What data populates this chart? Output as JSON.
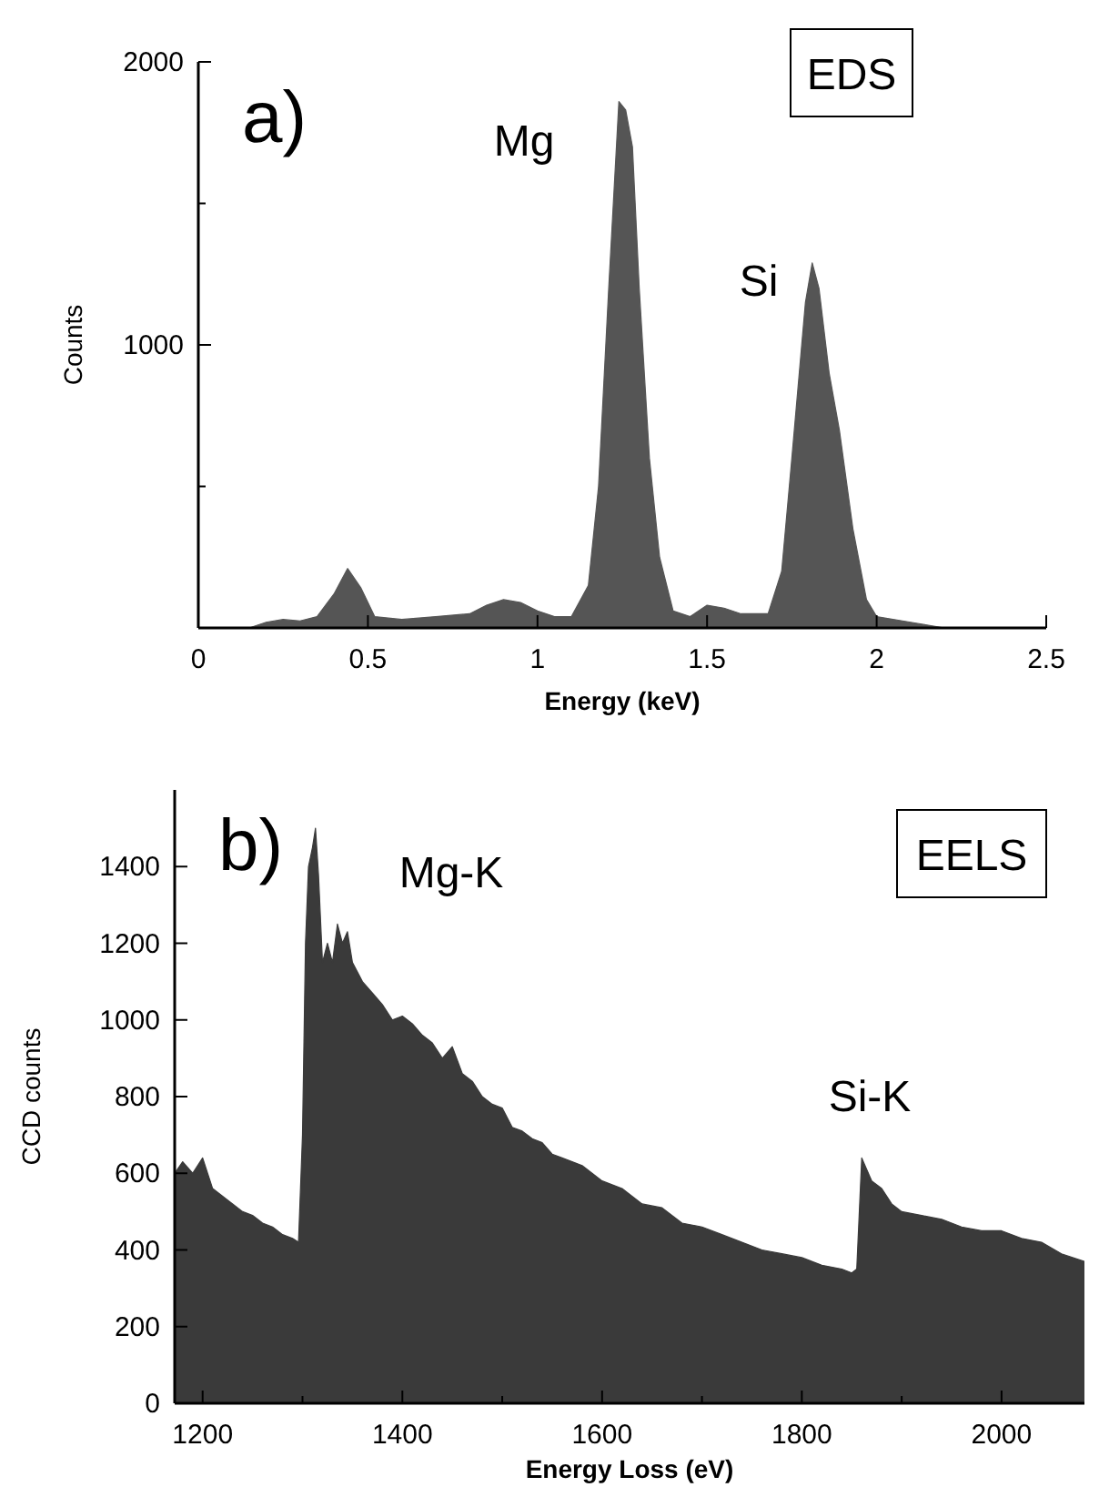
{
  "chart_data": [
    {
      "type": "area",
      "title": "a)",
      "xlabel": "Energy (keV)",
      "ylabel": "Counts",
      "xlim": [
        0,
        2.5
      ],
      "ylim": [
        0,
        2000
      ],
      "xticks": [
        0,
        0.5,
        1,
        1.5,
        2,
        2.5
      ],
      "yticks": [
        {
          "value": 0,
          "label": null
        },
        {
          "value": 500,
          "label": null
        },
        1000,
        {
          "value": 1500,
          "label": null
        },
        2000
      ],
      "annotations": [
        "Mg",
        "Si",
        "EDS"
      ],
      "series": [
        {
          "color": "#555555",
          "x": [
            0,
            0.15,
            0.2,
            0.25,
            0.3,
            0.35,
            0.4,
            0.44,
            0.48,
            0.52,
            0.6,
            0.7,
            0.8,
            0.85,
            0.9,
            0.95,
            1.0,
            1.05,
            1.1,
            1.15,
            1.18,
            1.21,
            1.24,
            1.26,
            1.28,
            1.3,
            1.33,
            1.36,
            1.4,
            1.45,
            1.5,
            1.55,
            1.6,
            1.68,
            1.72,
            1.75,
            1.79,
            1.81,
            1.83,
            1.86,
            1.89,
            1.93,
            1.97,
            2.0,
            2.1,
            2.2,
            2.5
          ],
          "values": [
            0,
            0,
            20,
            30,
            25,
            40,
            120,
            210,
            140,
            40,
            30,
            40,
            50,
            80,
            100,
            90,
            60,
            40,
            40,
            150,
            500,
            1200,
            1860,
            1830,
            1700,
            1200,
            600,
            250,
            60,
            40,
            80,
            70,
            50,
            50,
            200,
            600,
            1150,
            1290,
            1200,
            900,
            700,
            350,
            100,
            40,
            20,
            0,
            0
          ]
        }
      ]
    },
    {
      "type": "area",
      "title": "b)",
      "xlabel": "Energy Loss (eV)",
      "ylabel": "CCD counts",
      "xlim": [
        1172,
        2083
      ],
      "ylim": [
        0,
        1600
      ],
      "xticks": [
        1200,
        {
          "value": 1300,
          "label": null
        },
        1400,
        {
          "value": 1500,
          "label": null
        },
        1600,
        {
          "value": 1700,
          "label": null
        },
        1800,
        {
          "value": 1900,
          "label": null
        },
        2000
      ],
      "yticks": [
        0,
        200,
        400,
        600,
        800,
        1000,
        1200,
        1400
      ],
      "annotations": [
        "Mg-K",
        "Si-K",
        "EELS"
      ],
      "series": [
        {
          "color": "#3a3a3a",
          "x": [
            1172,
            1180,
            1190,
            1200,
            1210,
            1220,
            1230,
            1240,
            1250,
            1260,
            1270,
            1280,
            1290,
            1296,
            1300,
            1303,
            1306,
            1310,
            1313,
            1316,
            1320,
            1325,
            1330,
            1335,
            1340,
            1345,
            1350,
            1360,
            1370,
            1380,
            1390,
            1400,
            1410,
            1420,
            1430,
            1440,
            1450,
            1460,
            1470,
            1480,
            1490,
            1500,
            1510,
            1520,
            1530,
            1540,
            1550,
            1560,
            1570,
            1580,
            1590,
            1600,
            1620,
            1640,
            1660,
            1680,
            1700,
            1720,
            1740,
            1760,
            1780,
            1800,
            1820,
            1840,
            1850,
            1855,
            1860,
            1870,
            1880,
            1890,
            1900,
            1920,
            1940,
            1960,
            1980,
            2000,
            2020,
            2040,
            2060,
            2083
          ],
          "values": [
            600,
            630,
            600,
            640,
            560,
            540,
            520,
            500,
            490,
            470,
            460,
            440,
            430,
            420,
            700,
            1200,
            1400,
            1450,
            1500,
            1380,
            1150,
            1200,
            1150,
            1250,
            1200,
            1230,
            1150,
            1100,
            1070,
            1040,
            1000,
            1010,
            990,
            960,
            940,
            900,
            930,
            860,
            840,
            800,
            780,
            770,
            720,
            710,
            690,
            680,
            650,
            640,
            630,
            620,
            600,
            580,
            560,
            520,
            510,
            470,
            460,
            440,
            420,
            400,
            390,
            380,
            360,
            350,
            340,
            350,
            640,
            580,
            560,
            520,
            500,
            490,
            480,
            460,
            450,
            450,
            430,
            420,
            390,
            370
          ]
        }
      ]
    }
  ]
}
